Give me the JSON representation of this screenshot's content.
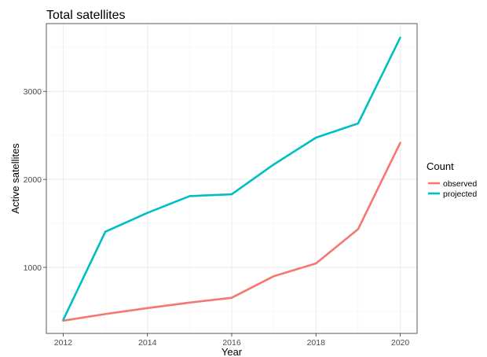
{
  "chart_data": {
    "type": "line",
    "title": "Total satellites",
    "xlabel": "Year",
    "ylabel": "Active satellites",
    "x": [
      2012,
      2013,
      2014,
      2015,
      2016,
      2017,
      2018,
      2019,
      2020
    ],
    "xlim": [
      2011.6,
      2020.4
    ],
    "ylim": [
      250,
      3770
    ],
    "xticks": [
      2012,
      2014,
      2016,
      2018,
      2020
    ],
    "yticks": [
      1000,
      2000,
      3000
    ],
    "grid": true,
    "legend": {
      "title": "Count",
      "position": "right"
    },
    "series": [
      {
        "name": "observed",
        "color": "#F8766D",
        "values": [
          395,
          470,
          538,
          600,
          655,
          900,
          1045,
          1435,
          2415
        ]
      },
      {
        "name": "projected",
        "color": "#00BFC4",
        "values": [
          405,
          1405,
          1620,
          1810,
          1830,
          2170,
          2475,
          2635,
          3610
        ]
      }
    ]
  }
}
